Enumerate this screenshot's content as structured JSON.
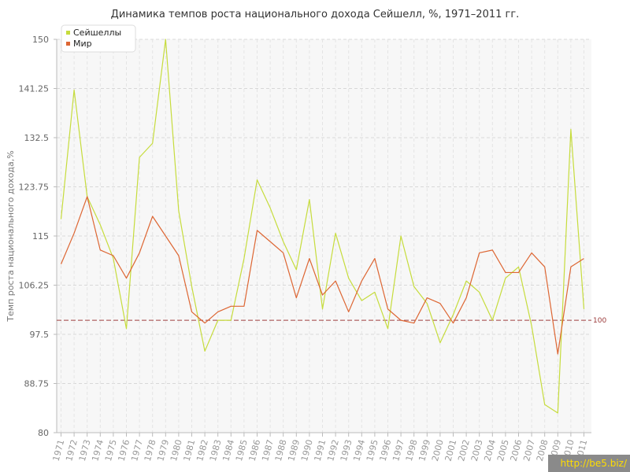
{
  "chart_data": {
    "type": "line",
    "title": "Динамика темпов роста национального дохода Сейшелл, %, 1971–2011 гг.",
    "ylabel": "Темп роста национального дохода,%",
    "xlabel": "",
    "ylim": [
      80,
      150
    ],
    "yticks": [
      "80",
      "88.75",
      "97.5",
      "106.25",
      "115",
      "123.75",
      "132.5",
      "141.25",
      "150"
    ],
    "categories": [
      "1971",
      "1972",
      "1973",
      "1974",
      "1975",
      "1976",
      "1977",
      "1978",
      "1979",
      "1980",
      "1981",
      "1982",
      "1983",
      "1984",
      "1985",
      "1986",
      "1987",
      "1988",
      "1989",
      "1990",
      "1991",
      "1992",
      "1993",
      "1994",
      "1995",
      "1996",
      "1997",
      "1998",
      "1999",
      "2000",
      "2001",
      "2002",
      "2003",
      "2004",
      "2005",
      "2006",
      "2007",
      "2008",
      "2009",
      "2010",
      "2011"
    ],
    "series": [
      {
        "name": "Сейшеллы",
        "color": "#c6dc3c",
        "values": [
          118,
          141,
          122,
          117,
          111,
          98.5,
          129,
          131.5,
          150,
          119.5,
          106,
          94.5,
          100,
          100,
          111,
          125,
          120,
          114,
          109,
          121.5,
          102,
          115.5,
          107.5,
          103.5,
          105,
          98.5,
          115,
          106,
          103,
          96,
          101,
          107,
          105,
          100,
          107.5,
          109.5,
          99,
          85,
          83.5,
          134,
          102
        ]
      },
      {
        "name": "Мир",
        "color": "#dd6633",
        "values": [
          110,
          115.5,
          122,
          112.5,
          111.5,
          107.5,
          112,
          118.5,
          115,
          111.5,
          101.5,
          99.5,
          101.5,
          102.5,
          102.5,
          116,
          114,
          112,
          104,
          111,
          104.5,
          107,
          101.5,
          107,
          111,
          102,
          100,
          99.5,
          104,
          103,
          99.5,
          104,
          112,
          112.5,
          108.5,
          108.5,
          112,
          109.5,
          94,
          109.5,
          111
        ]
      }
    ],
    "reference_line": {
      "value": 100,
      "label": "100",
      "color": "#a04040"
    },
    "legend_position": "top-left",
    "grid": true
  },
  "watermark": "http://be5.biz/"
}
